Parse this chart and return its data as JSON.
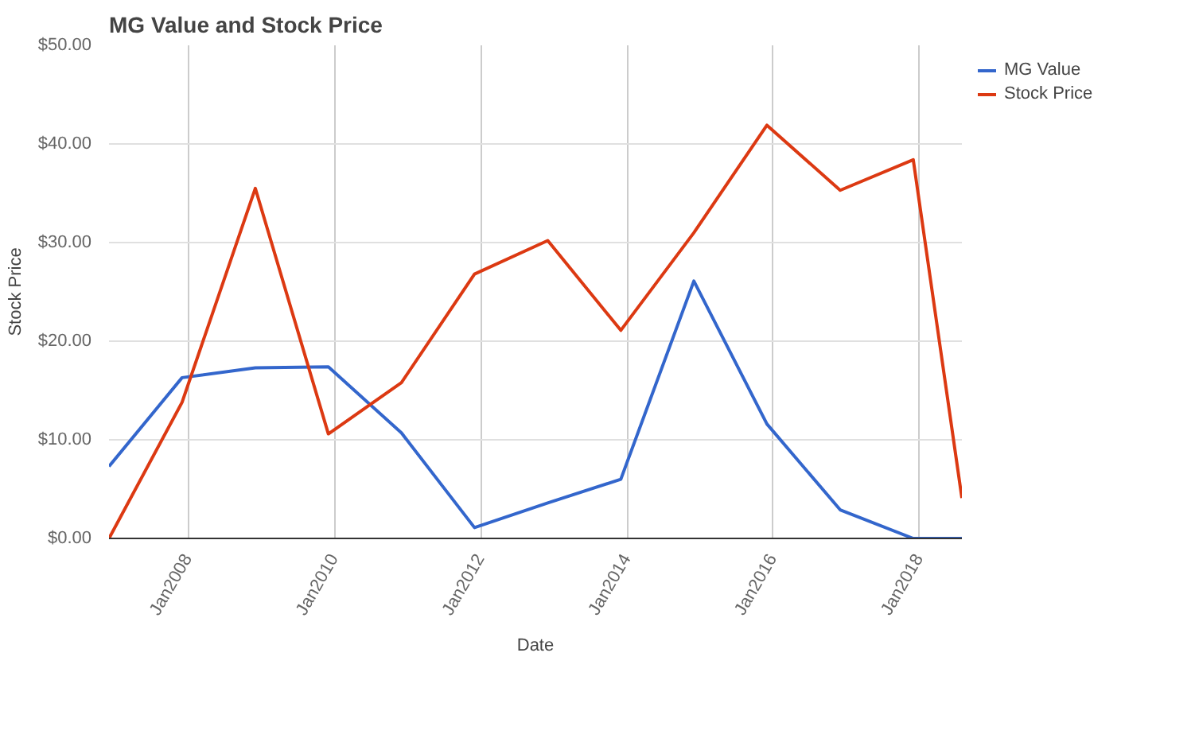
{
  "chart_data": {
    "type": "line",
    "title": "MG Value and Stock Price",
    "xlabel": "Date",
    "ylabel": "Stock Price",
    "x": [
      "2006-12-01",
      "2007-12-01",
      "2008-12-01",
      "2009-12-01",
      "2010-12-01",
      "2011-12-01",
      "2012-12-01",
      "2013-12-01",
      "2014-12-01",
      "2015-12-01",
      "2016-12-01",
      "2017-12-01",
      "2018-08-01"
    ],
    "series": [
      {
        "name": "MG Value",
        "color": "#3366cc",
        "values": [
          7.3,
          16.3,
          17.3,
          17.4,
          10.7,
          1.1,
          3.6,
          6.0,
          26.1,
          11.6,
          2.9,
          0,
          0
        ]
      },
      {
        "name": "Stock Price",
        "color": "#dc3912",
        "values": [
          0,
          13.8,
          35.5,
          10.6,
          15.8,
          26.8,
          30.2,
          21.1,
          31.0,
          41.9,
          35.3,
          38.4,
          4.1
        ]
      }
    ],
    "xlim": [
      "2006-12-01",
      "2018-08-01"
    ],
    "xticks": [
      {
        "value": "2008-01-01",
        "label": "Jan2008"
      },
      {
        "value": "2010-01-01",
        "label": "Jan2010"
      },
      {
        "value": "2012-01-01",
        "label": "Jan2012"
      },
      {
        "value": "2014-01-01",
        "label": "Jan2014"
      },
      {
        "value": "2016-01-01",
        "label": "Jan2016"
      },
      {
        "value": "2018-01-01",
        "label": "Jan2018"
      }
    ],
    "ylim": [
      0,
      50
    ],
    "yticks": [
      {
        "value": 0,
        "label": "$0.00"
      },
      {
        "value": 10,
        "label": "$10.00"
      },
      {
        "value": 20,
        "label": "$20.00"
      },
      {
        "value": 30,
        "label": "$30.00"
      },
      {
        "value": 40,
        "label": "$40.00"
      },
      {
        "value": 50,
        "label": "$50.00"
      }
    ],
    "grid": true,
    "legend": "top right",
    "marker": "none",
    "line_style": "solid"
  }
}
